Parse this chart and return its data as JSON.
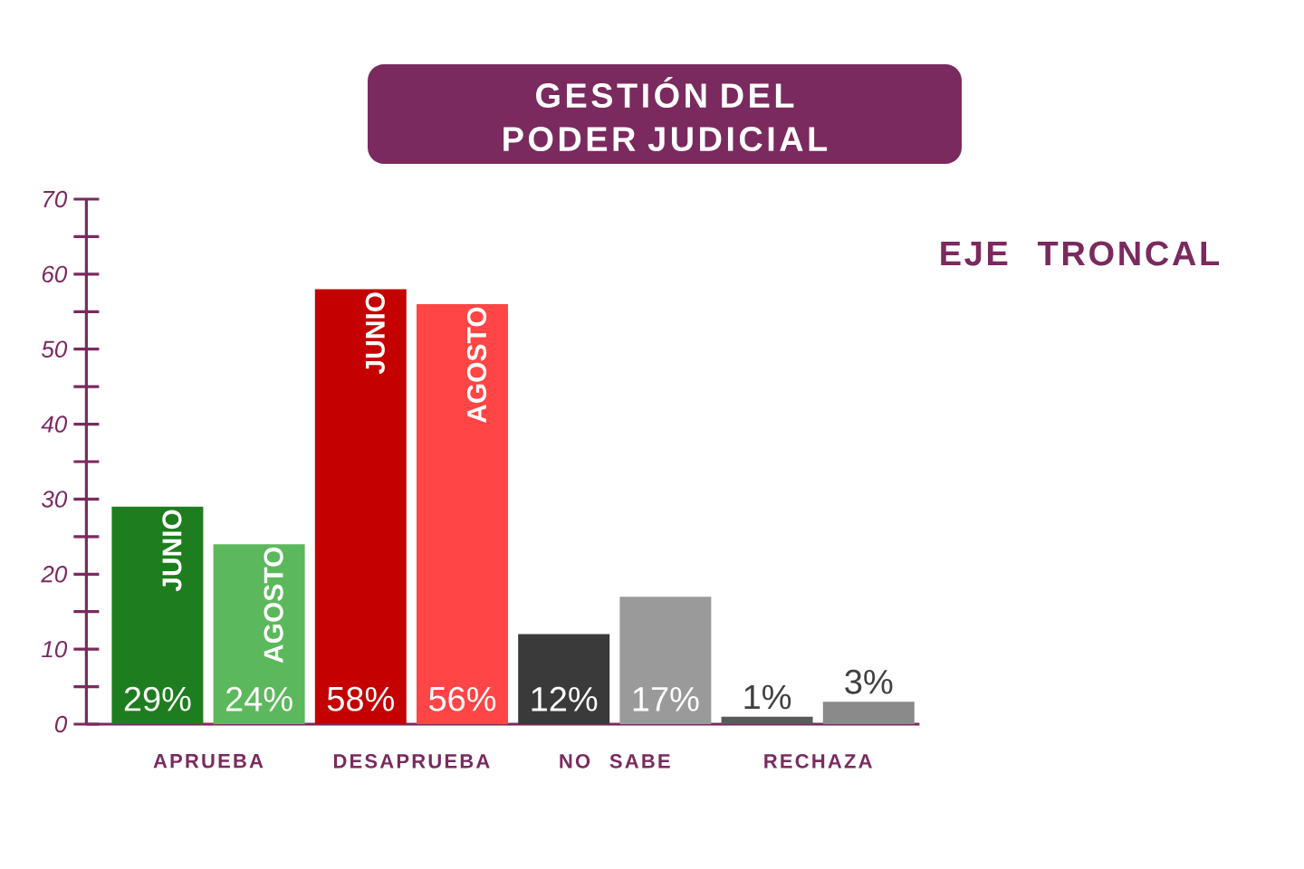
{
  "chart_data": {
    "type": "bar",
    "title": "GESTIÓN DEL PODER JUDICIAL",
    "subtitle": "EJE TRONCAL",
    "categories": [
      "APRUEBA",
      "DESAPRUEBA",
      "NO SABE",
      "RECHAZA"
    ],
    "series": [
      {
        "name": "JUNIO",
        "colors": [
          "#1e7d1e",
          "#c40000",
          "#3a3a3a",
          "#5a5a5a"
        ],
        "values": [
          29,
          58,
          12,
          1
        ],
        "value_labels": [
          "29%",
          "58%",
          "12%",
          "1%"
        ]
      },
      {
        "name": "AGOSTO",
        "colors": [
          "#5cb85c",
          "#ff4545",
          "#9a9a9a",
          "#8a8a8a"
        ],
        "values": [
          24,
          56,
          17,
          3
        ],
        "value_labels": [
          "24%",
          "56%",
          "17%",
          "3%"
        ]
      }
    ],
    "ylim": [
      0,
      70
    ],
    "yticks": [
      0,
      {
        "value": 5,
        "label": null
      },
      10,
      {
        "value": 15,
        "label": null
      },
      20,
      {
        "value": 25,
        "label": null
      },
      30,
      {
        "value": 35,
        "label": null
      },
      40,
      {
        "value": 45,
        "label": null
      },
      50,
      {
        "value": 55,
        "label": null
      },
      60,
      {
        "value": 65,
        "label": null
      },
      70
    ]
  }
}
